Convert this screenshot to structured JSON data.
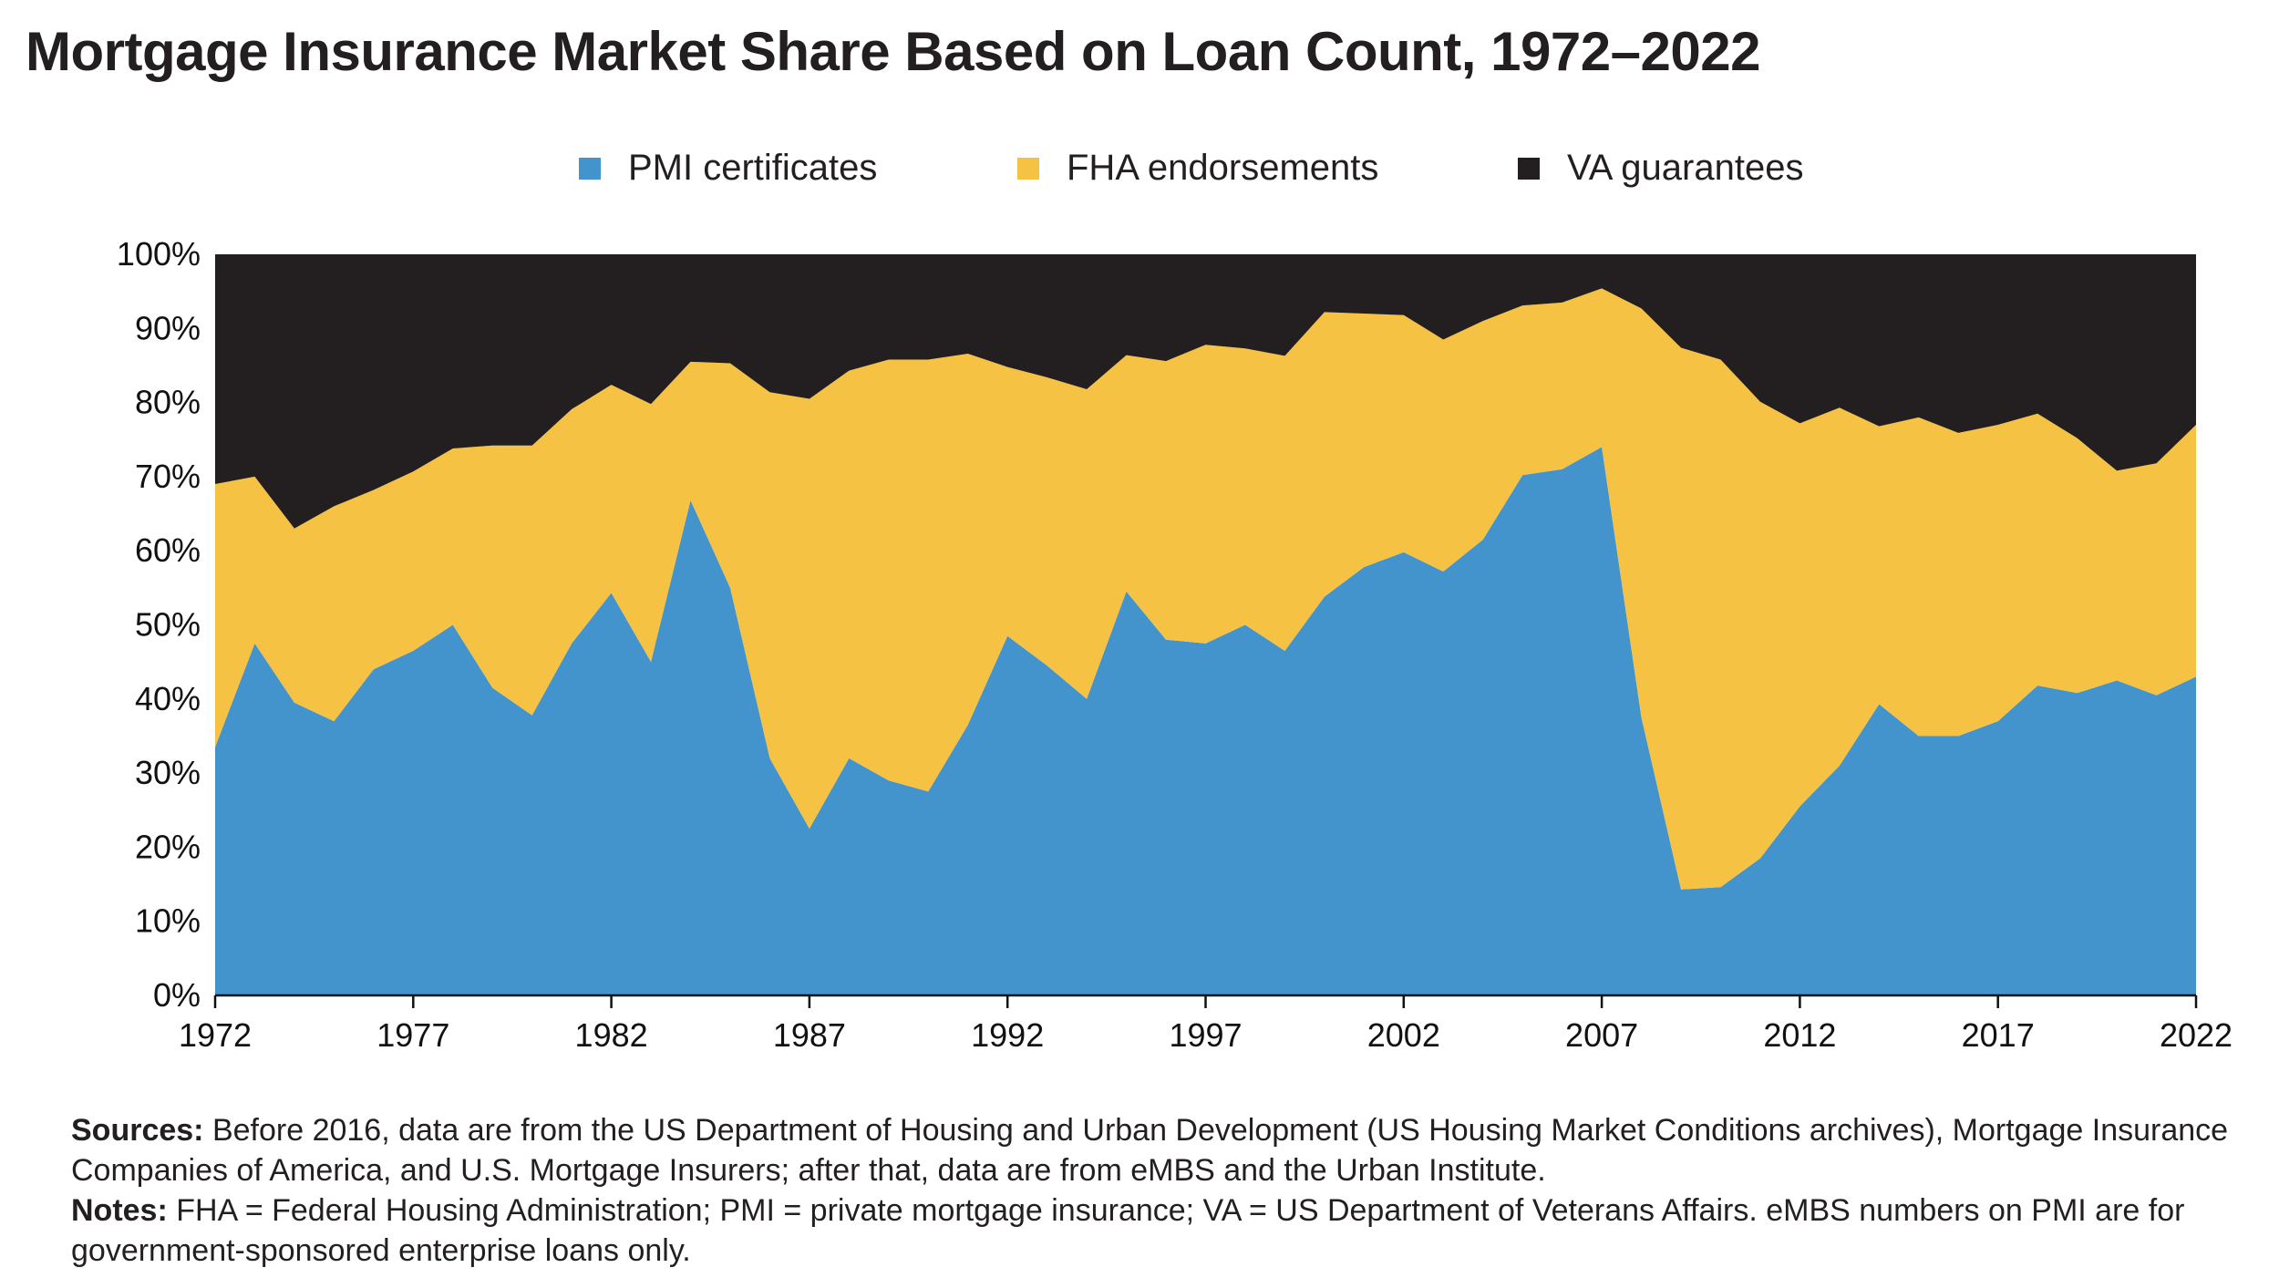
{
  "chart_data": {
    "type": "area",
    "stacked": true,
    "title": "Mortgage Insurance Market Share Based on Loan Count, 1972–2022",
    "xlabel": "",
    "ylabel": "",
    "ylim": [
      0,
      100
    ],
    "y_ticks": [
      "0%",
      "10%",
      "20%",
      "30%",
      "40%",
      "50%",
      "60%",
      "70%",
      "80%",
      "90%",
      "100%"
    ],
    "x_ticks": [
      "1972",
      "1977",
      "1982",
      "1987",
      "1992",
      "1997",
      "2002",
      "2007",
      "2012",
      "2017",
      "2022"
    ],
    "x": [
      1972,
      1973,
      1974,
      1975,
      1976,
      1977,
      1978,
      1979,
      1980,
      1981,
      1982,
      1983,
      1984,
      1985,
      1986,
      1987,
      1988,
      1989,
      1990,
      1991,
      1992,
      1993,
      1994,
      1995,
      1996,
      1997,
      1998,
      1999,
      2000,
      2001,
      2002,
      2003,
      2004,
      2005,
      2006,
      2007,
      2008,
      2009,
      2010,
      2011,
      2012,
      2013,
      2014,
      2015,
      2016,
      2017,
      2018,
      2019,
      2020,
      2021,
      2022
    ],
    "series": [
      {
        "name": "PMI certificates",
        "color": "#4393cc",
        "values": [
          33.5,
          47.5,
          39.5,
          37,
          44,
          46.5,
          50,
          41.5,
          37.8,
          47.5,
          54.3,
          45,
          66.8,
          55,
          32,
          22.5,
          32,
          29,
          27.5,
          36.5,
          48.5,
          44.5,
          40,
          54.5,
          48,
          47.5,
          50,
          46.5,
          53.8,
          57.8,
          59.8,
          57.2,
          61.5,
          70.2,
          71,
          74,
          37.5,
          14.3,
          14.6,
          18.5,
          25.5,
          31,
          39.3,
          35,
          35,
          37,
          41.8,
          40.8,
          42.5,
          40.5,
          43
        ]
      },
      {
        "name": "FHA endorsements",
        "color": "#f5c244",
        "values": [
          35.5,
          22.5,
          23.5,
          29,
          24.2,
          24.2,
          23.8,
          32.7,
          36.4,
          31.6,
          28.1,
          34.8,
          18.7,
          30.3,
          49.4,
          58,
          52.3,
          56.8,
          58.3,
          50.1,
          36.3,
          38.9,
          41.8,
          31.9,
          37.6,
          40.3,
          37.3,
          39.8,
          38.4,
          34.2,
          32,
          31.3,
          29.5,
          22.9,
          22.5,
          21.4,
          55.2,
          73.1,
          71.2,
          61.6,
          51.7,
          48.3,
          37.5,
          43,
          40.9,
          40,
          36.7,
          34.4,
          28.3,
          31.3,
          34
        ]
      },
      {
        "name": "VA guarantees",
        "color": "#231f20",
        "values": [
          31,
          30,
          37,
          34,
          31.8,
          29.3,
          26.2,
          25.8,
          25.8,
          20.9,
          17.6,
          20.2,
          14.5,
          14.7,
          18.6,
          19.5,
          15.7,
          14.2,
          14.2,
          13.4,
          15.2,
          16.6,
          18.2,
          13.6,
          14.4,
          12.2,
          12.7,
          13.7,
          7.8,
          8,
          8.2,
          11.5,
          9,
          6.9,
          6.5,
          4.6,
          7.3,
          12.6,
          14.2,
          19.9,
          22.8,
          20.7,
          23.2,
          22,
          24.1,
          23,
          21.5,
          24.8,
          29.2,
          28.2,
          23
        ]
      }
    ]
  },
  "legend": {
    "items": [
      {
        "label": "PMI certificates",
        "color": "#4393cc"
      },
      {
        "label": "FHA endorsements",
        "color": "#f5c244"
      },
      {
        "label": "VA guarantees",
        "color": "#231f20"
      }
    ]
  },
  "notes": {
    "sources_label": "Sources:",
    "sources_text": " Before 2016, data are from the US Department of Housing and Urban Development (US Housing Market Conditions archives), Mortgage Insurance Companies of America, and U.S. Mortgage Insurers; after that, data are from eMBS and the Urban Institute.",
    "notes_label": "Notes:",
    "notes_text": " FHA = Federal Housing Administration; PMI = private mortgage insurance; VA = US Department of Veterans Affairs. eMBS numbers on PMI are for government-sponsored enterprise loans only."
  }
}
